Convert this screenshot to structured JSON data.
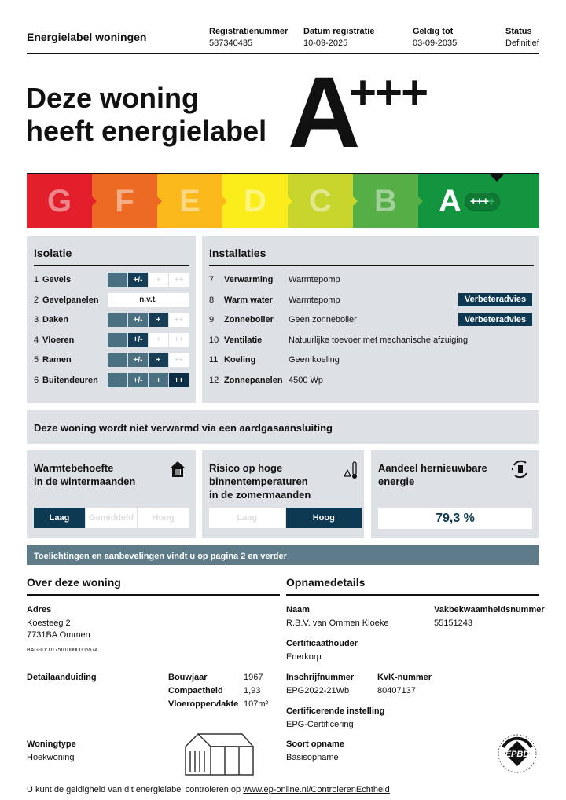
{
  "header": {
    "title": "Energielabel woningen",
    "fields": [
      {
        "label": "Registratienummer",
        "value": "587340435"
      },
      {
        "label": "Datum registratie",
        "value": "10-09-2025"
      },
      {
        "label": "Geldig tot",
        "value": "03-09-2035"
      },
      {
        "label": "Status",
        "value": "Definitief"
      }
    ]
  },
  "hero": {
    "line1": "Deze woning",
    "line2": "heeft energielabel",
    "label_letter": "A",
    "label_plus": "+++"
  },
  "scale": {
    "classes": [
      "G",
      "F",
      "E",
      "D",
      "C",
      "B",
      "A"
    ],
    "colors": [
      "#e21f2a",
      "#ec6a24",
      "#fbb81b",
      "#fbec1b",
      "#c7d52d",
      "#56ae46",
      "#13953f"
    ],
    "current": "A",
    "current_plus": "+++",
    "plus_extra": "+"
  },
  "isolatie": {
    "title": "Isolatie",
    "cols": [
      "",
      "+/-",
      "+",
      "++"
    ],
    "rows": [
      {
        "num": "1",
        "label": "Gevels",
        "level": "+/-"
      },
      {
        "num": "2",
        "label": "Gevelpanelen",
        "na": "n.v.t."
      },
      {
        "num": "3",
        "label": "Daken",
        "level": "+"
      },
      {
        "num": "4",
        "label": "Vloeren",
        "level": "+/-"
      },
      {
        "num": "5",
        "label": "Ramen",
        "level": "+"
      },
      {
        "num": "6",
        "label": "Buitendeuren",
        "level": "++"
      }
    ]
  },
  "installaties": {
    "title": "Installaties",
    "rows": [
      {
        "num": "7",
        "label": "Verwarming",
        "value": "Warmtepomp"
      },
      {
        "num": "8",
        "label": "Warm water",
        "value": "Warmtepomp",
        "button": "Verbeteradvies"
      },
      {
        "num": "9",
        "label": "Zonneboiler",
        "value": "Geen zonneboiler",
        "button": "Verbeteradvies"
      },
      {
        "num": "10",
        "label": "Ventilatie",
        "value": "Natuurlijke toevoer met mechanische afzuiging"
      },
      {
        "num": "11",
        "label": "Koeling",
        "value": "Geen koeling"
      },
      {
        "num": "12",
        "label": "Zonnepanelen",
        "value": "4500 Wp"
      }
    ]
  },
  "gas": "Deze woning wordt niet verwarmd via een aardgasaansluiting",
  "cards": {
    "warmte": {
      "line1": "Warmtebehoefte",
      "line2": "in de wintermaanden",
      "options": [
        "Laag",
        "Gemiddeld",
        "Hoog"
      ],
      "selected": "Laag",
      "icon": "house-icon"
    },
    "risico": {
      "line1": "Risico op hoge",
      "line2": "binnentemperaturen",
      "line3": "in de zomermaanden",
      "options": [
        "Laag",
        "Hoog"
      ],
      "selected": "Hoog",
      "icon": "thermometer-warning-icon"
    },
    "aandeel": {
      "line1": "Aandeel hernieuwbare",
      "line2": "energie",
      "value": "79,3 %",
      "icon": "renewable-icon"
    }
  },
  "banner": "Toelichtingen en aanbevelingen vindt u op pagina 2 en verder",
  "woning": {
    "title": "Over deze woning",
    "adres_label": "Adres",
    "adres1": "Koesteeg 2",
    "adres2": "7731BA Ommen",
    "bag": "BAG-ID: 0175010000005574",
    "detail_label": "Detailaanduiding",
    "bouwjaar_label": "Bouwjaar",
    "bouwjaar": "1967",
    "compact_label": "Compactheid",
    "compact": "1,93",
    "vloer_label": "Vloeroppervlakte",
    "vloer": "107m²",
    "type_label": "Woningtype",
    "type": "Hoekwoning"
  },
  "opname": {
    "title": "Opnamedetails",
    "naam_label": "Naam",
    "naam": "R.B.V. van Ommen Kloeke",
    "vak_label": "Vakbekwaamheidsnummer",
    "vak": "55151243",
    "cert_label": "Certificaathouder",
    "cert": "Enerkorp",
    "inschr_label": "Inschrijfnummer",
    "inschr": "EPG2022-21Wb",
    "kvk_label": "KvK-nummer",
    "kvk": "80407137",
    "inst_label": "Certificerende instelling",
    "inst": "EPG-Certificering",
    "soort_label": "Soort opname",
    "soort": "Basisopname",
    "logo": "EPBD"
  },
  "footer": {
    "text": "U kunt de geldigheid van dit energielabel controleren op ",
    "link": "www.ep-online.nl/ControlerenEchtheid"
  }
}
